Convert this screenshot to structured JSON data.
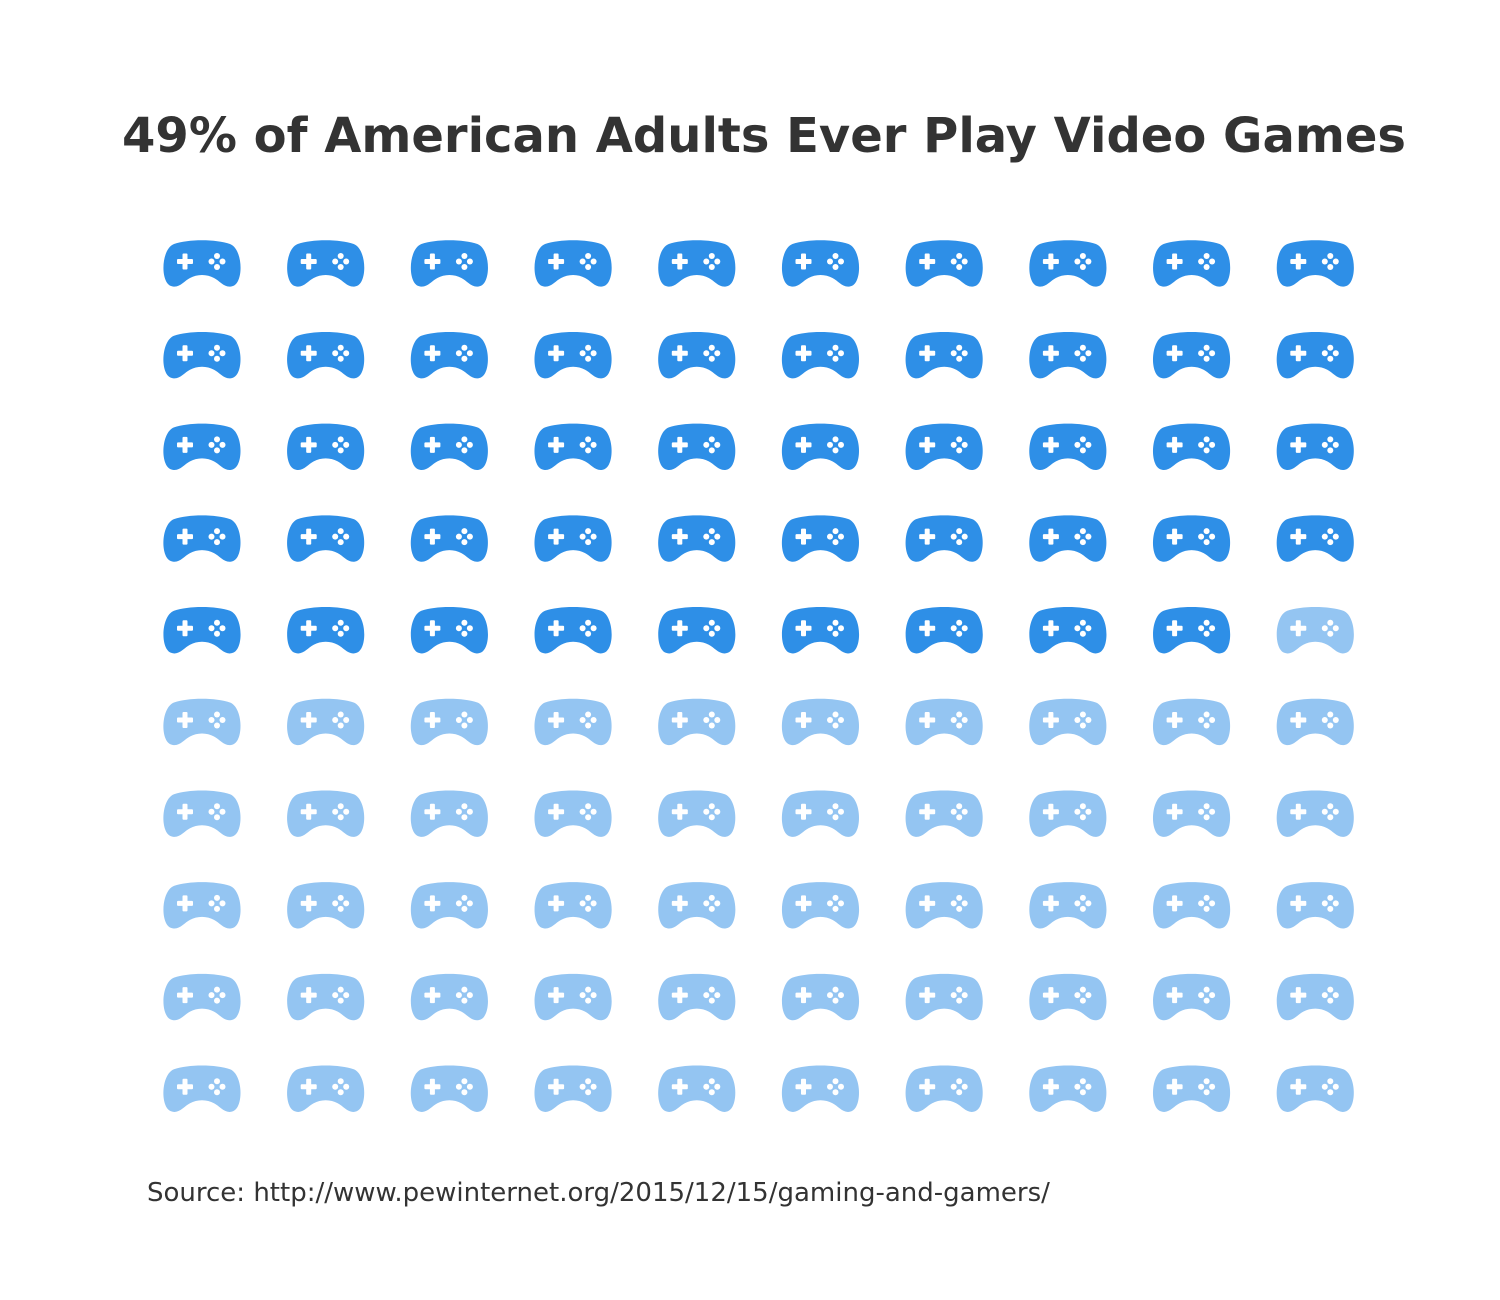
{
  "chart_data": {
    "type": "pictogram",
    "title": "49% of American Adults Ever Play Video Games",
    "total_icons": 100,
    "highlighted_icons": 49,
    "value_percent": 49,
    "icon": "gamepad-icon",
    "colors": {
      "highlighted": "#2e8fe7",
      "remaining": "#94c5f2",
      "symbols": "#ffffff"
    }
  },
  "source": "Source: http://www.pewinternet.org/2015/12/15/gaming-and-gamers/"
}
